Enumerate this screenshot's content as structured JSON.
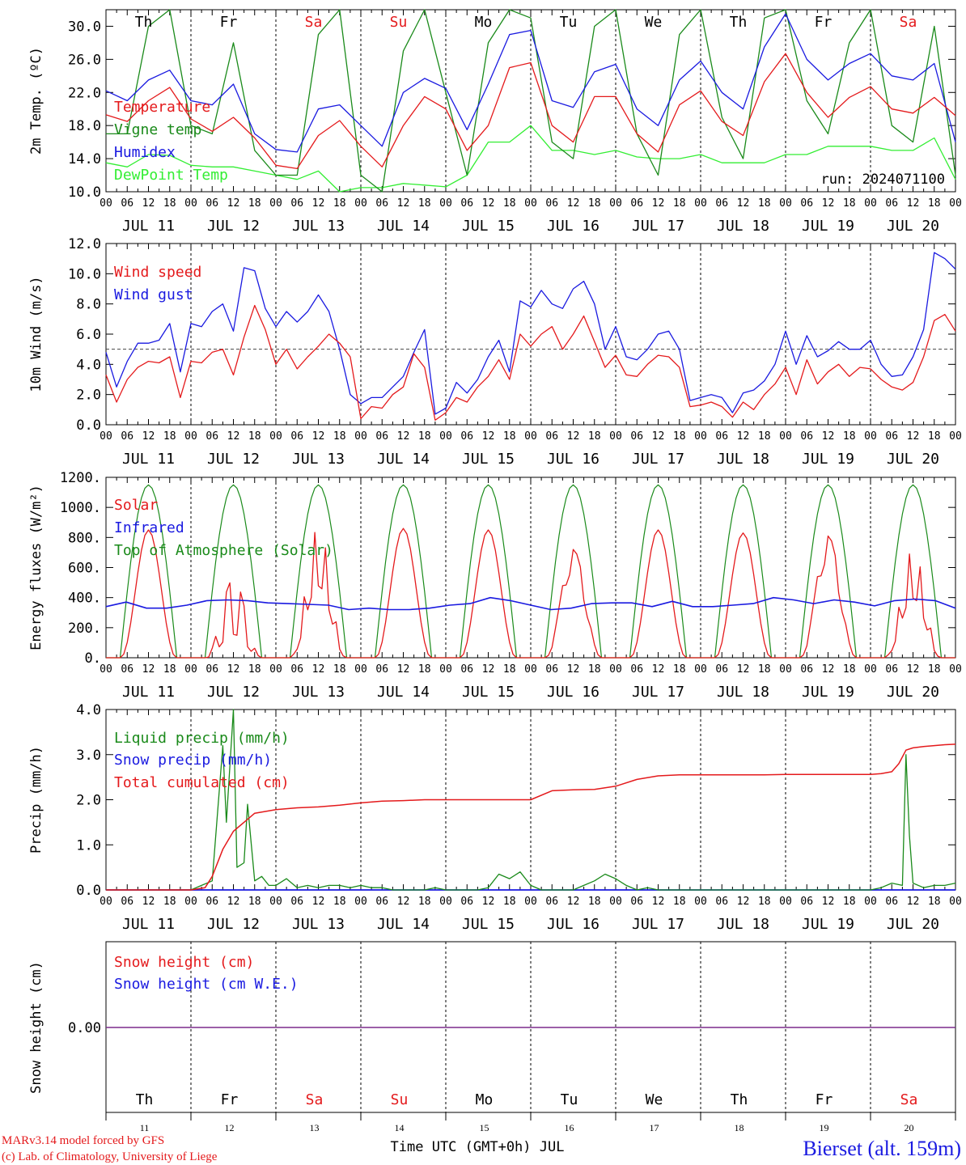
{
  "meta": {
    "run_label": "run: 2024071100",
    "model_line": "MARv3.14 model forced by GFS",
    "copyright_line": "(c) Lab. of Climatology, University of Liege",
    "x_axis_title": "Time UTC (GMT+0h) JUL",
    "station": "Bierset (alt. 159m)",
    "colors": {
      "red": "#e41a1c",
      "green": "#1a8a1a",
      "blue": "#1a1ae0",
      "lightgreen": "#33ee33",
      "weekend": "#e41a1c"
    }
  },
  "time_axis": {
    "hour_ticks": [
      "00",
      "06",
      "12",
      "18"
    ],
    "final_tick": "00",
    "dates": [
      "JUL 11",
      "JUL 12",
      "JUL 13",
      "JUL 14",
      "JUL 15",
      "JUL 16",
      "JUL 17",
      "JUL 18",
      "JUL 19",
      "JUL 20"
    ],
    "weekdays": [
      "Th",
      "Fr",
      "Sa",
      "Su",
      "Mo",
      "Tu",
      "We",
      "Th",
      "Fr",
      "Sa"
    ],
    "weekend": [
      false,
      false,
      true,
      true,
      false,
      false,
      false,
      false,
      false,
      true
    ],
    "day_numbers": [
      "11",
      "12",
      "13",
      "14",
      "15",
      "16",
      "17",
      "18",
      "19",
      "20"
    ]
  },
  "chart_data": [
    {
      "id": "temp",
      "type": "line",
      "ylabel": "2m Temp. (ºC)",
      "ylim": [
        10,
        32
      ],
      "yticks": [
        "10.0",
        "14.0",
        "18.0",
        "22.0",
        "26.0",
        "30.0"
      ],
      "ytick_values": [
        10,
        14,
        18,
        22,
        26,
        30
      ],
      "x_hours": [
        0,
        6,
        12,
        18,
        24,
        30,
        36,
        42,
        48,
        54,
        60,
        66,
        72,
        78,
        84,
        90,
        96,
        102,
        108,
        114,
        120,
        126,
        132,
        138,
        144,
        150,
        156,
        162,
        168,
        174,
        180,
        186,
        192,
        198,
        204,
        210,
        216,
        222,
        228,
        234,
        240
      ],
      "series": [
        {
          "name": "Temperature",
          "color": "#e41a1c",
          "values": [
            19.3,
            18.5,
            21,
            22.6,
            18.8,
            17.3,
            19,
            16.5,
            13.2,
            12.8,
            16.8,
            18.6,
            15.5,
            13,
            18,
            21.5,
            20,
            15,
            18,
            25,
            25.6,
            18,
            16,
            21.5,
            21.5,
            17,
            14.8,
            20.5,
            22.2,
            18.5,
            16.8,
            23.3,
            26.7,
            22,
            19,
            21.4,
            22.7,
            20,
            19.5,
            21.4,
            19.2
          ]
        },
        {
          "name": "Vigne temp",
          "color": "#1a8a1a",
          "values": [
            17,
            17,
            30,
            32,
            18,
            17,
            28,
            15,
            12,
            12,
            29,
            32,
            12,
            10,
            27,
            32,
            22,
            12,
            28,
            32,
            31,
            16,
            14,
            30,
            33,
            17,
            12,
            29,
            32,
            19,
            14,
            31,
            33,
            21,
            17,
            28,
            32,
            18,
            16,
            30,
            12
          ]
        },
        {
          "name": "Humidex",
          "color": "#1a1ae0",
          "values": [
            22.2,
            21,
            23.5,
            24.7,
            21,
            20.5,
            23,
            17,
            15.1,
            14.8,
            20,
            20.5,
            18,
            15.5,
            22,
            23.7,
            22.5,
            17.5,
            23,
            29,
            29.5,
            21,
            20.2,
            24.5,
            25.4,
            20,
            18,
            23.5,
            25.8,
            22,
            20,
            27.5,
            31.5,
            26,
            23.5,
            25.5,
            26.7,
            24,
            23.5,
            25.5,
            16
          ]
        },
        {
          "name": "DewPoint Temp",
          "color": "#33ee33",
          "values": [
            13.5,
            13,
            14.5,
            14.4,
            13.2,
            13,
            13,
            12.5,
            12,
            11.5,
            12.5,
            10,
            10.5,
            10.5,
            11,
            10.8,
            10.6,
            12,
            16,
            16,
            18,
            15,
            15,
            14.5,
            15,
            14.2,
            14,
            14,
            14.5,
            13.5,
            13.5,
            13.5,
            14.5,
            14.5,
            15.5,
            15.5,
            15.5,
            15,
            15,
            16.5,
            11.5
          ]
        }
      ]
    },
    {
      "id": "wind",
      "type": "line",
      "ylabel": "10m Wind (m/s)",
      "ylim": [
        0,
        12
      ],
      "yticks": [
        "0.0",
        "2.0",
        "4.0",
        "6.0",
        "8.0",
        "10.0",
        "12.0"
      ],
      "ytick_values": [
        0,
        2,
        4,
        6,
        8,
        10,
        12
      ],
      "reference_line": 5,
      "x_hours": [
        0,
        3,
        6,
        9,
        12,
        15,
        18,
        21,
        24,
        27,
        30,
        33,
        36,
        39,
        42,
        45,
        48,
        51,
        54,
        57,
        60,
        63,
        66,
        69,
        72,
        75,
        78,
        81,
        84,
        87,
        90,
        93,
        96,
        99,
        102,
        105,
        108,
        111,
        114,
        117,
        120,
        123,
        126,
        129,
        132,
        135,
        138,
        141,
        144,
        147,
        150,
        153,
        156,
        159,
        162,
        165,
        168,
        171,
        174,
        177,
        180,
        183,
        186,
        189,
        192,
        195,
        198,
        201,
        204,
        207,
        210,
        213,
        216,
        219,
        222,
        225,
        228,
        231,
        234,
        237,
        240
      ],
      "series": [
        {
          "name": "Wind speed",
          "color": "#e41a1c",
          "values": [
            3.3,
            1.5,
            3,
            3.8,
            4.2,
            4.1,
            4.5,
            1.8,
            4.2,
            4.1,
            4.8,
            5,
            3.3,
            5.8,
            7.9,
            6.3,
            4,
            5,
            3.7,
            4.5,
            5.2,
            6,
            5.4,
            4.5,
            0.4,
            1.2,
            1.1,
            2,
            2.5,
            4.7,
            3.8,
            0.3,
            0.8,
            1.8,
            1.5,
            2.5,
            3.2,
            4.3,
            3,
            6,
            5.2,
            6,
            6.5,
            5,
            6,
            7.2,
            5.5,
            3.8,
            4.6,
            3.3,
            3.2,
            4,
            4.6,
            4.5,
            3.8,
            1.2,
            1.3,
            1.5,
            1.2,
            0.5,
            1.5,
            1,
            2,
            2.7,
            3.8,
            2,
            4.3,
            2.7,
            3.5,
            4,
            3.2,
            3.8,
            3.7,
            3,
            2.5,
            2.3,
            2.8,
            4.5,
            6.9,
            7.3,
            6.2
          ]
        },
        {
          "name": "Wind gust",
          "color": "#1a1ae0",
          "values": [
            4.8,
            2.5,
            4.2,
            5.4,
            5.4,
            5.6,
            6.7,
            3.5,
            6.7,
            6.5,
            7.5,
            8,
            6.2,
            10.4,
            10.2,
            7.7,
            6.5,
            7.5,
            6.8,
            7.5,
            8.6,
            7.5,
            5,
            2,
            1.4,
            1.8,
            1.8,
            2.5,
            3.2,
            4.8,
            6.3,
            0.7,
            1.1,
            2.8,
            2.1,
            3,
            4.5,
            5.6,
            3.5,
            8.2,
            7.8,
            8.9,
            8,
            7.7,
            9,
            9.5,
            8,
            5,
            6.5,
            4.5,
            4.3,
            5,
            6,
            6.2,
            5,
            1.6,
            1.8,
            2,
            1.8,
            0.8,
            2.1,
            2.3,
            2.9,
            4,
            6.2,
            4,
            5.9,
            4.5,
            4.9,
            5.5,
            5,
            5,
            5.6,
            4,
            3.2,
            3.3,
            4.5,
            6.3,
            11.4,
            11,
            10.3
          ]
        }
      ]
    },
    {
      "id": "energy",
      "type": "line",
      "ylabel": "Energy fluxes (W/m²)",
      "ylim": [
        0,
        1200
      ],
      "yticks": [
        "0.",
        "200.",
        "400.",
        "600.",
        "800.",
        "1000.",
        "1200."
      ],
      "ytick_values": [
        0,
        200,
        400,
        600,
        800,
        1000,
        1200
      ],
      "solar_peaks": [
        850,
        520,
        870,
        860,
        850,
        720,
        850,
        830,
        810,
        720
      ],
      "toa_peak": 1150,
      "infrared_values": [
        340,
        370,
        330,
        330,
        350,
        380,
        385,
        380,
        365,
        360,
        355,
        350,
        320,
        330,
        320,
        320,
        330,
        350,
        360,
        400,
        380,
        350,
        320,
        330,
        360,
        365,
        365,
        340,
        375,
        340,
        340,
        350,
        360,
        400,
        385,
        360,
        385,
        370,
        345,
        380,
        390,
        380,
        330
      ],
      "series": [
        {
          "name": "Solar",
          "color": "#e41a1c"
        },
        {
          "name": "Infrared",
          "color": "#1a1ae0"
        },
        {
          "name": "Top of Atmosphere (Solar)",
          "color": "#1a8a1a"
        }
      ]
    },
    {
      "id": "precip",
      "type": "line",
      "ylabel": "Precip (mm/h)",
      "ylim": [
        0,
        4
      ],
      "yticks": [
        "0.0",
        "1.0",
        "2.0",
        "3.0",
        "4.0"
      ],
      "ytick_values": [
        0,
        1,
        2,
        3,
        4
      ],
      "liquid_hours": [
        0,
        24,
        27,
        30,
        33,
        34,
        36,
        37,
        39,
        40,
        42,
        44,
        46,
        48,
        51,
        54,
        57,
        60,
        63,
        66,
        69,
        72,
        75,
        78,
        81,
        84,
        87,
        90,
        93,
        96,
        99,
        102,
        105,
        108,
        111,
        114,
        117,
        120,
        123,
        126,
        129,
        132,
        135,
        138,
        141,
        144,
        147,
        150,
        153,
        156,
        216,
        219,
        222,
        225,
        226,
        227,
        228,
        231,
        234,
        237,
        240
      ],
      "liquid_values": [
        0,
        0,
        0.1,
        0.2,
        3.2,
        1.5,
        4,
        0.5,
        0.6,
        1.9,
        0.2,
        0.3,
        0.1,
        0.1,
        0.25,
        0.05,
        0.1,
        0.05,
        0.1,
        0.1,
        0.05,
        0.1,
        0.05,
        0.05,
        0,
        0,
        0,
        0,
        0.05,
        0,
        0,
        0,
        0,
        0.05,
        0.35,
        0.25,
        0.4,
        0.1,
        0,
        0,
        0,
        0,
        0.1,
        0.2,
        0.35,
        0.25,
        0.1,
        0,
        0.05,
        0,
        0,
        0.05,
        0.15,
        0.1,
        3,
        1.2,
        0.15,
        0.05,
        0.1,
        0.1,
        0.15
      ],
      "cumul_hours": [
        0,
        24,
        28,
        30,
        33,
        36,
        39,
        42,
        48,
        54,
        60,
        66,
        72,
        78,
        84,
        90,
        96,
        102,
        108,
        114,
        120,
        126,
        132,
        138,
        144,
        150,
        156,
        162,
        168,
        174,
        180,
        186,
        192,
        198,
        204,
        210,
        216,
        219,
        222,
        224,
        226,
        228,
        231,
        234,
        237,
        240
      ],
      "cumul_values": [
        0,
        0,
        0.05,
        0.3,
        0.9,
        1.3,
        1.5,
        1.7,
        1.78,
        1.82,
        1.84,
        1.88,
        1.93,
        1.97,
        1.98,
        2,
        2,
        2,
        2,
        2,
        2,
        2.2,
        2.22,
        2.23,
        2.3,
        2.45,
        2.53,
        2.55,
        2.55,
        2.55,
        2.55,
        2.55,
        2.56,
        2.56,
        2.56,
        2.56,
        2.56,
        2.58,
        2.62,
        2.8,
        3.1,
        3.15,
        3.18,
        3.2,
        3.22,
        3.23
      ],
      "series": [
        {
          "name": "Liquid precip (mm/h)",
          "color": "#1a8a1a"
        },
        {
          "name": "Snow precip (mm/h)",
          "color": "#1a1ae0"
        },
        {
          "name": "Total cumulated (cm)",
          "color": "#e41a1c"
        }
      ]
    },
    {
      "id": "snow",
      "type": "line",
      "ylabel": "Snow height (cm)",
      "yticks": [
        "0.00"
      ],
      "ytick_values": [
        0
      ],
      "series": [
        {
          "name": "Snow height (cm)",
          "color": "#e41a1c"
        },
        {
          "name": "Snow height (cm W.E.)",
          "color": "#1a1ae0"
        }
      ]
    }
  ]
}
